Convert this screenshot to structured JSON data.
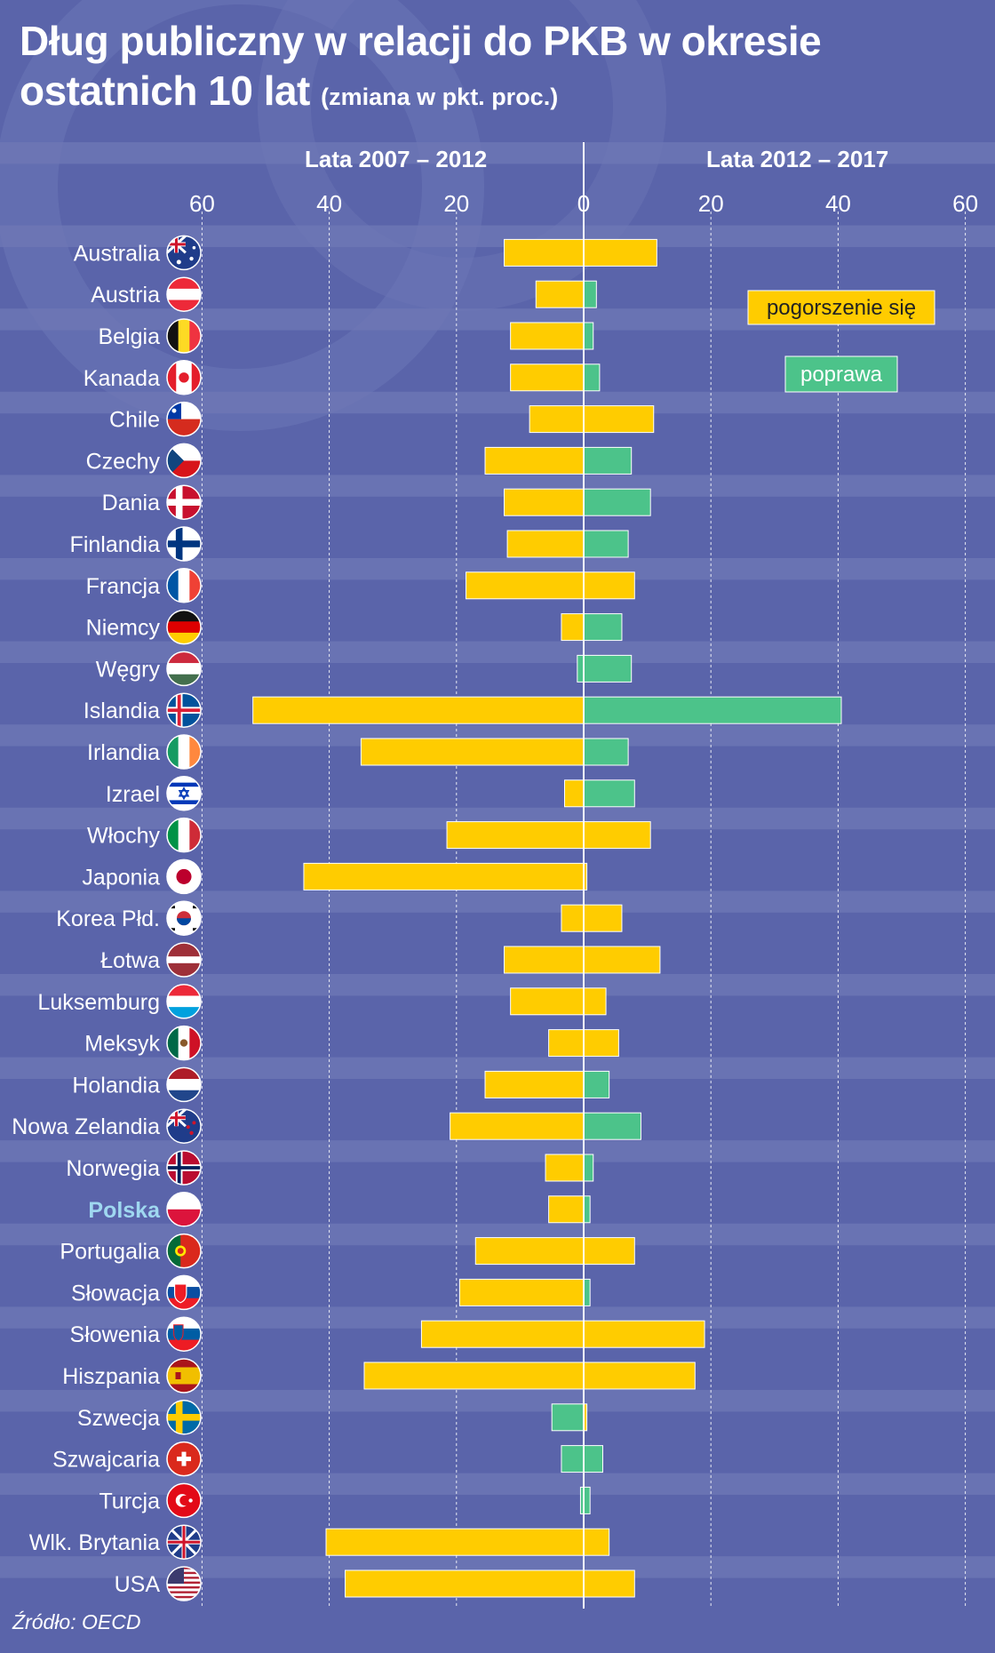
{
  "title": {
    "line1": "Dług publiczny w relacji do PKB w okresie",
    "line2_main": "ostatnich 10 lat",
    "line2_sub": "(zmiana w pkt. proc.)"
  },
  "period_left": "Lata 2007 – 2012",
  "period_right": "Lata 2012 – 2017",
  "legend": {
    "worse": "pogorszenie się",
    "better": "poprawa"
  },
  "source": "Źródło: OECD",
  "colors": {
    "background": "#5a64aa",
    "stripe": "#6f78b6",
    "worse": "#ffcc00",
    "better": "#4cc38a",
    "highlight_label": "#9fd8f0"
  },
  "chart_data": {
    "type": "bar",
    "orientation": "horizontal-diverging",
    "axis_ticks_left": [
      "60",
      "40",
      "20"
    ],
    "axis_ticks_right": [
      "0",
      "20",
      "40",
      "60"
    ],
    "xlim": [
      -60,
      60
    ],
    "grid": true,
    "legend_position": "top-right",
    "categories": [
      "Australia",
      "Austria",
      "Belgia",
      "Kanada",
      "Chile",
      "Czechy",
      "Dania",
      "Finlandia",
      "Francja",
      "Niemcy",
      "Węgry",
      "Islandia",
      "Irlandia",
      "Izrael",
      "Włochy",
      "Japonia",
      "Korea Płd.",
      "Łotwa",
      "Luksemburg",
      "Meksyk",
      "Holandia",
      "Nowa Zelandia",
      "Norwegia",
      "Polska",
      "Portugalia",
      "Słowacja",
      "Słowenia",
      "Hiszpania",
      "Szwecja",
      "Szwajcaria",
      "Turcja",
      "Wlk. Brytania",
      "USA"
    ],
    "highlighted_category": "Polska",
    "flags": [
      "australia-flag",
      "austria-flag",
      "belgium-flag",
      "canada-flag",
      "chile-flag",
      "czech-flag",
      "denmark-flag",
      "finland-flag",
      "france-flag",
      "germany-flag",
      "hungary-flag",
      "iceland-flag",
      "ireland-flag",
      "israel-flag",
      "italy-flag",
      "japan-flag",
      "korea-flag",
      "latvia-flag",
      "luxembourg-flag",
      "mexico-flag",
      "netherlands-flag",
      "newzealand-flag",
      "norway-flag",
      "poland-flag",
      "portugal-flag",
      "slovakia-flag",
      "slovenia-flag",
      "spain-flag",
      "sweden-flag",
      "switzerland-flag",
      "turkey-flag",
      "uk-flag",
      "usa-flag"
    ],
    "series": [
      {
        "name": "Lata 2007 – 2012",
        "values": [
          12.5,
          7.5,
          11.5,
          11.5,
          8.5,
          15.5,
          12.5,
          12,
          18.5,
          3.5,
          1,
          52,
          35,
          3,
          21.5,
          44,
          3.5,
          12.5,
          11.5,
          5.5,
          15.5,
          21,
          6,
          5.5,
          17,
          19.5,
          25.5,
          34.5,
          5,
          3.5,
          0.5,
          40.5,
          37.5
        ],
        "status": [
          "worse",
          "worse",
          "worse",
          "worse",
          "worse",
          "worse",
          "worse",
          "worse",
          "worse",
          "worse",
          "better",
          "worse",
          "worse",
          "worse",
          "worse",
          "worse",
          "worse",
          "worse",
          "worse",
          "worse",
          "worse",
          "worse",
          "worse",
          "worse",
          "worse",
          "worse",
          "worse",
          "worse",
          "better",
          "better",
          "better",
          "worse",
          "worse"
        ]
      },
      {
        "name": "Lata 2012 – 2017",
        "values": [
          11.5,
          2,
          1.5,
          2.5,
          11,
          7.5,
          10.5,
          7,
          8,
          6,
          7.5,
          40.5,
          7,
          8,
          10.5,
          0.5,
          6,
          12,
          3.5,
          5.5,
          4,
          9,
          1.5,
          1,
          8,
          1,
          19,
          17.5,
          0.5,
          3,
          1,
          4,
          8
        ],
        "status": [
          "worse",
          "better",
          "better",
          "better",
          "worse",
          "better",
          "better",
          "better",
          "worse",
          "better",
          "better",
          "better",
          "better",
          "better",
          "worse",
          "worse",
          "worse",
          "worse",
          "worse",
          "worse",
          "better",
          "better",
          "better",
          "better",
          "worse",
          "better",
          "worse",
          "worse",
          "worse",
          "better",
          "better",
          "worse",
          "worse"
        ]
      }
    ]
  }
}
